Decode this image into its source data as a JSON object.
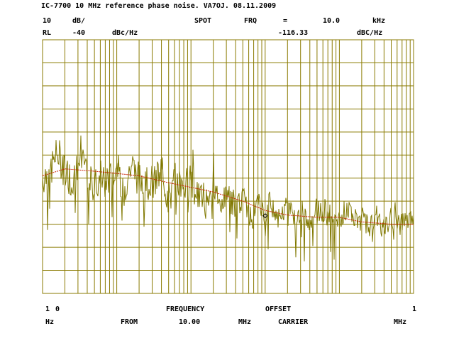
{
  "header": {
    "title": "IC-7700 10 MHz reference phase noise. VA7OJ. 08.11.2009",
    "row1": {
      "scale_value": "10",
      "scale_unit": "dB/",
      "spot": "SPOT",
      "frq": "FRQ",
      "eq": "=",
      "frq_value": "10.0",
      "frq_unit": "kHz"
    },
    "row2": {
      "rl": "RL",
      "rl_value": "-40",
      "rl_unit": "dBc/Hz",
      "marker_value": "-116.33",
      "marker_unit": "dBC/Hz"
    }
  },
  "footer": {
    "row1": {
      "start_a": "1",
      "start_b": "0",
      "freq": "FREQUENCY",
      "offset": "OFFSET",
      "stop": "1"
    },
    "row2": {
      "hz": "Hz",
      "from": "FROM",
      "center_value": "10.00",
      "center_unit": "MHz",
      "carrier": "CARRIER",
      "stop_unit": "MHz"
    }
  },
  "colors": {
    "grid": "#8a7a00",
    "raw_trace": "#807800",
    "smoothed_trace": "#c81e00",
    "marker": "#000000"
  },
  "chart_data": {
    "type": "line",
    "x_scale": "log",
    "xlim": [
      10,
      1000000
    ],
    "ylim": [
      -150,
      -40
    ],
    "y_per_division": 10,
    "grid": true,
    "series": [
      {
        "x": [
          10,
          20,
          50,
          100,
          200,
          500,
          1000,
          2000,
          5000,
          10000,
          20000,
          50000,
          100000,
          200000,
          500000,
          1000000
        ],
        "values": [
          -99,
          -96,
          -97,
          -98,
          -99,
          -102,
          -104,
          -106,
          -110,
          -114,
          -116,
          -117,
          -117,
          -119,
          -120,
          -120
        ]
      },
      {
        "x": [
          10,
          13,
          16,
          20,
          25,
          32,
          40,
          50,
          63,
          79,
          100,
          126,
          158,
          200,
          251,
          316,
          398,
          501,
          631,
          794,
          1000,
          1259,
          1585,
          1995,
          2512,
          3162,
          3981,
          5012,
          6310,
          7943,
          10000,
          12589,
          15849,
          19953,
          25119,
          31623,
          39811,
          50119,
          63096,
          79433,
          100000,
          125893,
          158489,
          199526,
          251189,
          316228,
          398107,
          501187,
          630957,
          794328,
          1000000
        ],
        "values": [
          -100,
          -96,
          -89,
          -97,
          -101,
          -93,
          -99,
          -104,
          -96,
          -101,
          -95,
          -105,
          -94,
          -101,
          -99,
          -103,
          -97,
          -109,
          -100,
          -104,
          -101,
          -107,
          -110,
          -103,
          -111,
          -106,
          -114,
          -108,
          -117,
          -110,
          -116,
          -113,
          -119,
          -111,
          -118,
          -114,
          -121,
          -113,
          -117,
          -115,
          -120,
          -112,
          -118,
          -116,
          -121,
          -115,
          -123,
          -117,
          -121,
          -118,
          -120
        ]
      }
    ],
    "marker": {
      "x": 10000,
      "y": -116.33
    }
  }
}
